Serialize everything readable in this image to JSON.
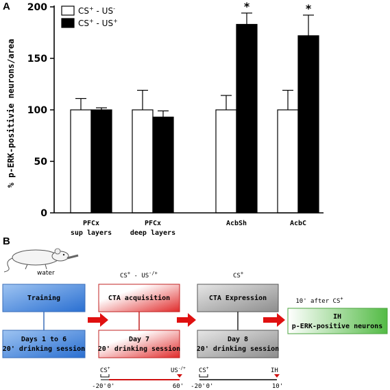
{
  "panel_a_letter": "A",
  "panel_b_letter": "B",
  "chart_data": {
    "type": "bar",
    "ylabel": "% p-ERK-positivie neurons/area",
    "ylim": [
      0,
      200
    ],
    "yticks": [
      0,
      50,
      100,
      150,
      200
    ],
    "categories": [
      {
        "line1": "PFCx",
        "line2": "sup layers"
      },
      {
        "line1": "PFCx",
        "line2": "deep layers"
      },
      {
        "line1": "AcbSh",
        "line2": ""
      },
      {
        "line1": "AcbC",
        "line2": ""
      }
    ],
    "series": [
      {
        "name": "CS+ - US-",
        "sup1": "+",
        "sup2": "-",
        "color": "#ffffff",
        "values": [
          100,
          100,
          100,
          100
        ],
        "errors": [
          11,
          19,
          14,
          19
        ]
      },
      {
        "name": "CS+ - US+",
        "sup1": "+",
        "sup2": "+",
        "color": "#000000",
        "values": [
          100,
          93,
          183,
          172
        ],
        "errors": [
          2,
          6,
          11,
          20
        ]
      }
    ],
    "significance": [
      "",
      "",
      "*",
      "*"
    ],
    "legend_position": "top-left"
  },
  "diagram": {
    "mouse_caption": "water",
    "stage_headers": [
      "CS+ - US-/+",
      "CS+",
      "10' after CS+"
    ],
    "boxes": {
      "training": "Training",
      "days_1_6_line1": "Days 1 to 6",
      "days_1_6_line2": "20' drinking session",
      "cta_acquisition": "CTA acquisition",
      "day7_line1": "Day 7",
      "day7_line2": "20' drinking session",
      "cta_expression": "CTA Expression",
      "day8_line1": "Day 8",
      "day8_line2": "20' drinking session",
      "ih_line1": "IH",
      "ih_line2": "p-ERK-positive neurons"
    },
    "timeline1": {
      "cs": "CS+",
      "us": "US-/+",
      "ticks": [
        "-20'",
        "0'",
        "60'"
      ]
    },
    "timeline2": {
      "cs": "CS+",
      "ih": "IH",
      "ticks": [
        "-20'",
        "0'",
        "10'"
      ]
    },
    "colors": {
      "training": "#3f7fd6",
      "acquisition": "#e23030",
      "expression": "#8a8a8a",
      "ih": "#5cbf4a",
      "arrow": "#e01010"
    }
  }
}
